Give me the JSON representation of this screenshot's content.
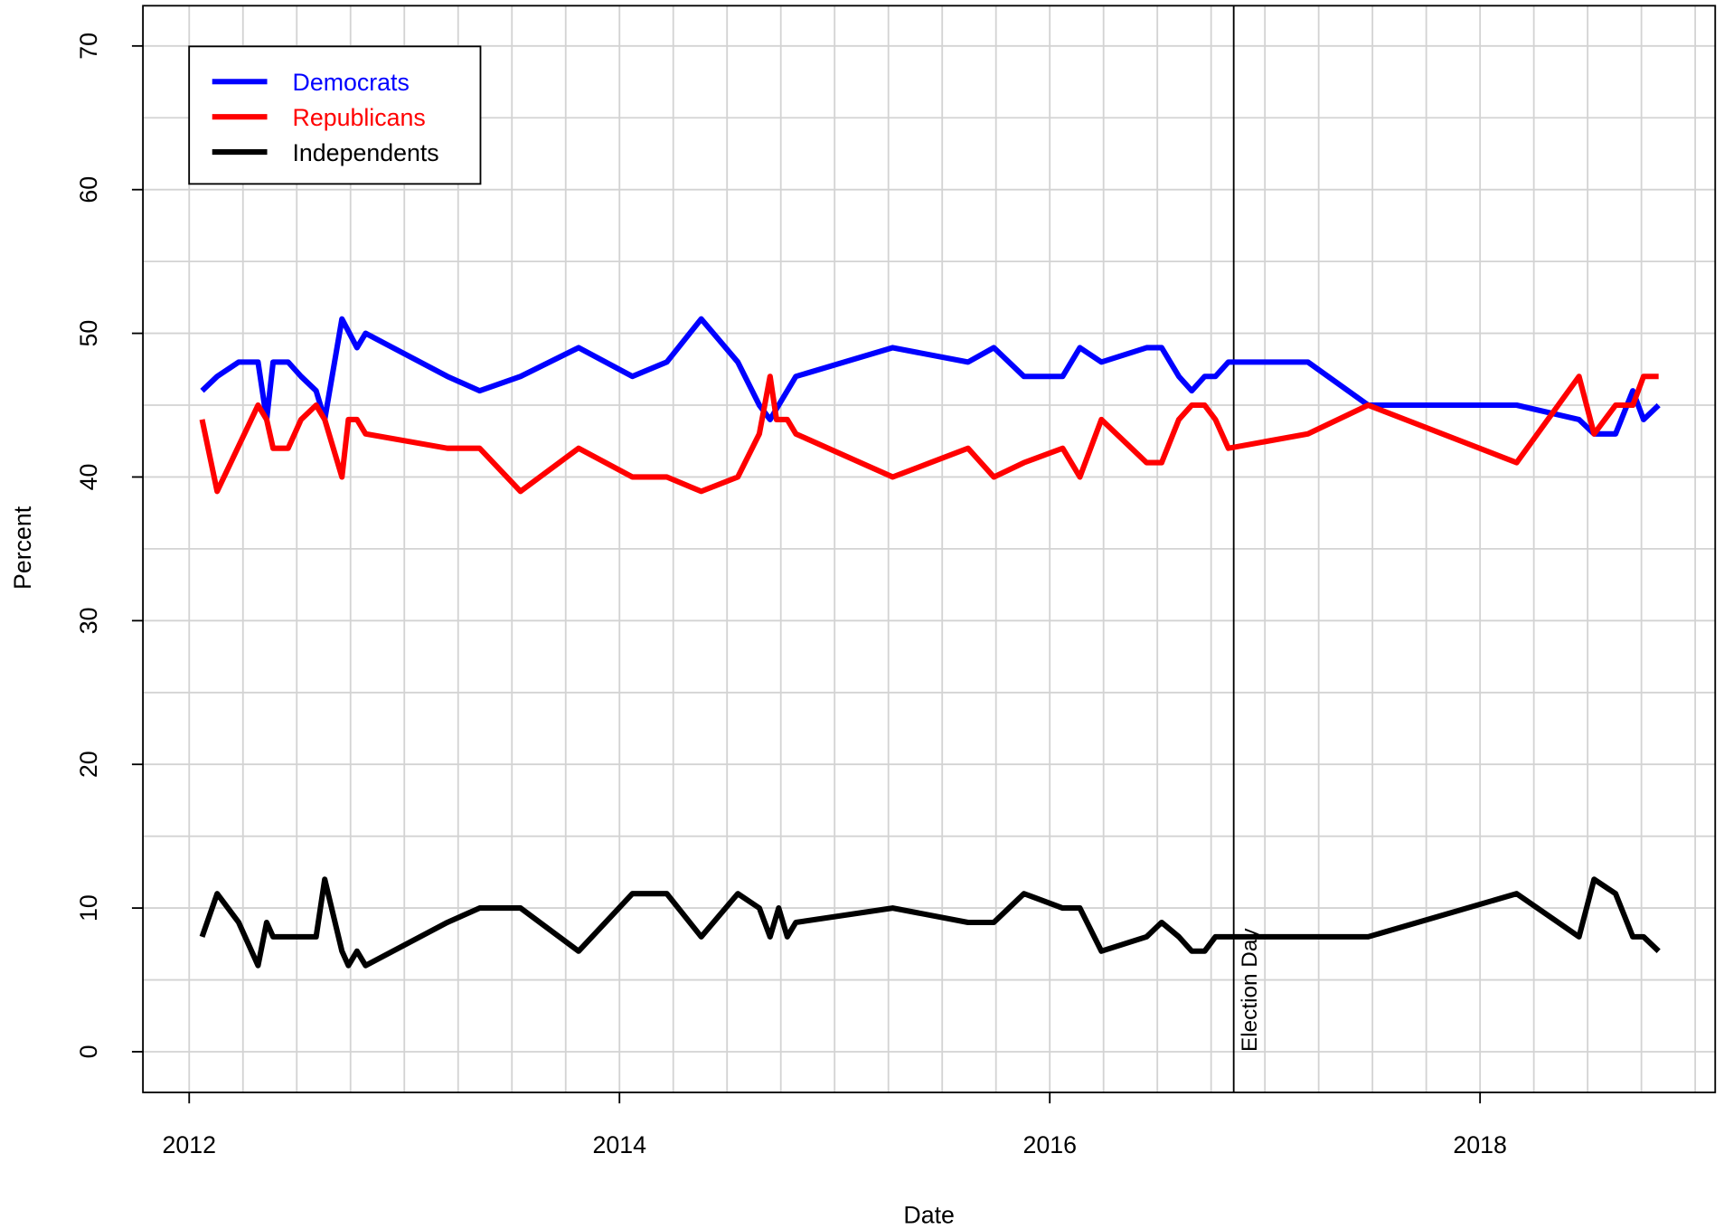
{
  "chart_data": {
    "type": "line",
    "xlabel": "Date",
    "ylabel": "Percent",
    "xlim": [
      2011.785,
      2019.093
    ],
    "ylim": [
      -2.83,
      72.8
    ],
    "xticks": [
      2012,
      2014,
      2016,
      2018
    ],
    "yticks": [
      0,
      10,
      20,
      30,
      40,
      50,
      60,
      70
    ],
    "grid": true,
    "grid_step": {
      "x": 0.25,
      "y": 5
    },
    "legend": "top-left",
    "annotations": [
      {
        "x": 2016.855,
        "label": "Election Day"
      }
    ],
    "series": [
      {
        "name": "Democrats",
        "color": "#0000ff",
        "x": [
          2012.06,
          2012.13,
          2012.23,
          2012.32,
          2012.36,
          2012.39,
          2012.46,
          2012.52,
          2012.59,
          2012.63,
          2012.71,
          2012.78,
          2012.82,
          2013.2,
          2013.35,
          2013.54,
          2013.81,
          2014.06,
          2014.22,
          2014.38,
          2014.55,
          2014.65,
          2014.7,
          2014.82,
          2015.27,
          2015.62,
          2015.74,
          2015.88,
          2016.06,
          2016.14,
          2016.24,
          2016.45,
          2016.52,
          2016.6,
          2016.66,
          2016.72,
          2016.77,
          2016.83,
          2017.2,
          2017.48,
          2018.17,
          2018.46,
          2018.53,
          2018.63,
          2018.71,
          2018.76,
          2018.83
        ],
        "values": [
          46,
          47,
          48,
          48,
          44,
          48,
          48,
          47,
          46,
          44,
          51,
          49,
          50,
          47,
          46,
          47,
          49,
          47,
          48,
          51,
          48,
          45,
          44,
          47,
          49,
          48,
          49,
          47,
          47,
          49,
          48,
          49,
          49,
          47,
          46,
          47,
          47,
          48,
          48,
          45,
          45,
          44,
          43,
          43,
          46,
          44,
          45
        ]
      },
      {
        "name": "Republicans",
        "color": "#ff0000",
        "x": [
          2012.06,
          2012.13,
          2012.32,
          2012.36,
          2012.39,
          2012.46,
          2012.52,
          2012.59,
          2012.63,
          2012.71,
          2012.74,
          2012.78,
          2012.82,
          2013.2,
          2013.35,
          2013.54,
          2013.81,
          2014.06,
          2014.22,
          2014.38,
          2014.55,
          2014.65,
          2014.7,
          2014.73,
          2014.78,
          2014.82,
          2015.27,
          2015.62,
          2015.74,
          2015.88,
          2016.06,
          2016.14,
          2016.24,
          2016.45,
          2016.52,
          2016.6,
          2016.66,
          2016.72,
          2016.77,
          2016.83,
          2017.2,
          2017.48,
          2018.17,
          2018.46,
          2018.53,
          2018.63,
          2018.71,
          2018.76,
          2018.83
        ],
        "values": [
          44,
          39,
          45,
          44,
          42,
          42,
          44,
          45,
          44,
          40,
          44,
          44,
          43,
          42,
          42,
          39,
          42,
          40,
          40,
          39,
          40,
          43,
          47,
          44,
          44,
          43,
          40,
          42,
          40,
          41,
          42,
          40,
          44,
          41,
          41,
          44,
          45,
          45,
          44,
          42,
          43,
          45,
          41,
          47,
          43,
          45,
          45,
          47,
          47
        ]
      },
      {
        "name": "Independents",
        "color": "#000000",
        "x": [
          2012.06,
          2012.13,
          2012.23,
          2012.32,
          2012.36,
          2012.39,
          2012.46,
          2012.52,
          2012.59,
          2012.63,
          2012.71,
          2012.74,
          2012.78,
          2012.82,
          2013.2,
          2013.35,
          2013.54,
          2013.81,
          2014.06,
          2014.22,
          2014.38,
          2014.55,
          2014.65,
          2014.7,
          2014.74,
          2014.78,
          2014.82,
          2015.27,
          2015.62,
          2015.74,
          2015.88,
          2016.06,
          2016.14,
          2016.24,
          2016.45,
          2016.52,
          2016.6,
          2016.66,
          2016.72,
          2016.77,
          2016.83,
          2017.2,
          2017.48,
          2018.17,
          2018.46,
          2018.53,
          2018.63,
          2018.71,
          2018.76,
          2018.83
        ],
        "values": [
          8,
          11,
          9,
          6,
          9,
          8,
          8,
          8,
          8,
          12,
          7,
          6,
          7,
          6,
          9,
          10,
          10,
          7,
          11,
          11,
          8,
          11,
          10,
          8,
          10,
          8,
          9,
          10,
          9,
          9,
          11,
          10,
          10,
          7,
          8,
          9,
          8,
          7,
          7,
          8,
          8,
          8,
          8,
          11,
          8,
          12,
          11,
          8,
          8,
          7
        ]
      }
    ]
  }
}
